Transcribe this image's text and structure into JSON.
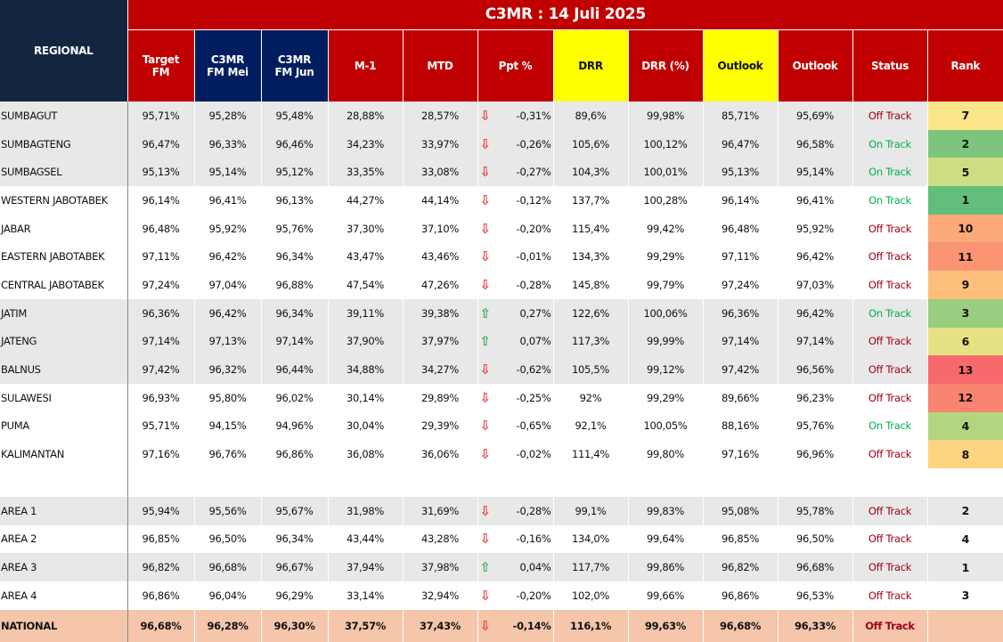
{
  "title": "C3MR : 14 Juli 2025",
  "headers": {
    "regional": "REGIONAL",
    "target": [
      "Target",
      "FM"
    ],
    "mei": [
      "C3MR",
      "FM Mei"
    ],
    "jun": [
      "C3MR",
      "FM Jun"
    ],
    "m1": "M-1",
    "mtd": "MTD",
    "ppt": "Ppt %",
    "drr": "DRR",
    "drr_pct": "DRR (%)",
    "outlook1": "Outlook",
    "outlook2": "Outlook",
    "status": "Status",
    "rank": "Rank"
  },
  "colors": {
    "header_red": "#c00000",
    "header_navy": "#001e5f",
    "regional_bg": "#12263f",
    "highlight_yellow": "#ffff00",
    "on_track": "#00b050",
    "off_track": "#a00018",
    "national_bg": "#f5c6aa"
  },
  "regions": [
    {
      "name": "SUMBAGUT",
      "target": "95,71%",
      "mei": "95,28%",
      "jun": "95,48%",
      "m1": "28,88%",
      "mtd": "28,57%",
      "trend": "down",
      "ppt": "-0,31%",
      "drr": "89,6%",
      "drr_pct": "99,98%",
      "outlook1": "85,71%",
      "outlook2": "95,69%",
      "status": "Off Track",
      "rank": "7",
      "rank_color": "#fde58a",
      "bg": "g"
    },
    {
      "name": "SUMBAGTENG",
      "target": "96,47%",
      "mei": "96,33%",
      "jun": "96,46%",
      "m1": "34,23%",
      "mtd": "33,97%",
      "trend": "down",
      "ppt": "-0,26%",
      "drr": "105,6%",
      "drr_pct": "100,12%",
      "outlook1": "96,47%",
      "outlook2": "96,58%",
      "status": "On Track",
      "rank": "2",
      "rank_color": "#7dc57c",
      "bg": "g"
    },
    {
      "name": "SUMBAGSEL",
      "target": "95,13%",
      "mei": "95,14%",
      "jun": "95,12%",
      "m1": "33,35%",
      "mtd": "33,08%",
      "trend": "down",
      "ppt": "-0,27%",
      "drr": "104,3%",
      "drr_pct": "100,01%",
      "outlook1": "95,13%",
      "outlook2": "95,14%",
      "status": "On Track",
      "rank": "5",
      "rank_color": "#cdde82",
      "bg": "g"
    },
    {
      "name": "WESTERN JABOTABEK",
      "target": "96,14%",
      "mei": "96,41%",
      "jun": "96,13%",
      "m1": "44,27%",
      "mtd": "44,14%",
      "trend": "down",
      "ppt": "-0,12%",
      "drr": "137,7%",
      "drr_pct": "100,28%",
      "outlook1": "96,14%",
      "outlook2": "96,41%",
      "status": "On Track",
      "rank": "1",
      "rank_color": "#63be7b",
      "bg": "w"
    },
    {
      "name": "JABAR",
      "target": "96,48%",
      "mei": "95,92%",
      "jun": "95,76%",
      "m1": "37,30%",
      "mtd": "37,10%",
      "trend": "down",
      "ppt": "-0,20%",
      "drr": "115,4%",
      "drr_pct": "99,42%",
      "outlook1": "96,48%",
      "outlook2": "95,92%",
      "status": "Off Track",
      "rank": "10",
      "rank_color": "#fca877",
      "bg": "w"
    },
    {
      "name": "EASTERN JABOTABEK",
      "target": "97,11%",
      "mei": "96,42%",
      "jun": "96,34%",
      "m1": "43,47%",
      "mtd": "43,46%",
      "trend": "down",
      "ppt": "-0,01%",
      "drr": "134,3%",
      "drr_pct": "99,29%",
      "outlook1": "97,11%",
      "outlook2": "96,42%",
      "status": "Off Track",
      "rank": "11",
      "rank_color": "#fa9473",
      "bg": "w"
    },
    {
      "name": "CENTRAL JABOTABEK",
      "target": "97,24%",
      "mei": "97,04%",
      "jun": "96,88%",
      "m1": "47,54%",
      "mtd": "47,26%",
      "trend": "down",
      "ppt": "-0,28%",
      "drr": "145,8%",
      "drr_pct": "99,79%",
      "outlook1": "97,24%",
      "outlook2": "97,03%",
      "status": "Off Track",
      "rank": "9",
      "rank_color": "#fdbf7b",
      "bg": "w"
    },
    {
      "name": "JATIM",
      "target": "96,36%",
      "mei": "96,42%",
      "jun": "96,34%",
      "m1": "39,11%",
      "mtd": "39,38%",
      "trend": "up",
      "ppt": "0,27%",
      "drr": "122,6%",
      "drr_pct": "100,06%",
      "outlook1": "96,36%",
      "outlook2": "96,42%",
      "status": "On Track",
      "rank": "3",
      "rank_color": "#98ce7f",
      "bg": "g"
    },
    {
      "name": "JATENG",
      "target": "97,14%",
      "mei": "97,13%",
      "jun": "97,14%",
      "m1": "37,90%",
      "mtd": "37,97%",
      "trend": "up",
      "ppt": "0,07%",
      "drr": "117,3%",
      "drr_pct": "99,99%",
      "outlook1": "97,14%",
      "outlook2": "97,14%",
      "status": "Off Track",
      "rank": "6",
      "rank_color": "#e5e283",
      "bg": "g"
    },
    {
      "name": "BALNUS",
      "target": "97,42%",
      "mei": "96,32%",
      "jun": "96,44%",
      "m1": "34,88%",
      "mtd": "34,27%",
      "trend": "down",
      "ppt": "-0,62%",
      "drr": "105,5%",
      "drr_pct": "99,12%",
      "outlook1": "97,42%",
      "outlook2": "96,56%",
      "status": "Off Track",
      "rank": "13",
      "rank_color": "#f8696b",
      "bg": "g"
    },
    {
      "name": "SULAWESI",
      "target": "96,93%",
      "mei": "95,80%",
      "jun": "96,02%",
      "m1": "30,14%",
      "mtd": "29,89%",
      "trend": "down",
      "ppt": "-0,25%",
      "drr": "92%",
      "drr_pct": "99,29%",
      "outlook1": "89,66%",
      "outlook2": "96,23%",
      "status": "Off Track",
      "rank": "12",
      "rank_color": "#f98470",
      "bg": "w"
    },
    {
      "name": "PUMA",
      "target": "95,71%",
      "mei": "94,15%",
      "jun": "94,96%",
      "m1": "30,04%",
      "mtd": "29,39%",
      "trend": "down",
      "ppt": "-0,65%",
      "drr": "92,1%",
      "drr_pct": "100,05%",
      "outlook1": "88,16%",
      "outlook2": "95,76%",
      "status": "On Track",
      "rank": "4",
      "rank_color": "#b1d67f",
      "bg": "w"
    },
    {
      "name": "KALIMANTAN",
      "target": "97,16%",
      "mei": "96,76%",
      "jun": "96,86%",
      "m1": "36,08%",
      "mtd": "36,06%",
      "trend": "down",
      "ppt": "-0,02%",
      "drr": "111,4%",
      "drr_pct": "99,80%",
      "outlook1": "97,16%",
      "outlook2": "96,96%",
      "status": "Off Track",
      "rank": "8",
      "rank_color": "#fed480",
      "bg": "w"
    }
  ],
  "areas": [
    {
      "name": "AREA 1",
      "target": "95,94%",
      "mei": "95,56%",
      "jun": "95,67%",
      "m1": "31,98%",
      "mtd": "31,69%",
      "trend": "down",
      "ppt": "-0,28%",
      "drr": "99,1%",
      "drr_pct": "99,83%",
      "outlook1": "95,08%",
      "outlook2": "95,78%",
      "status": "Off Track",
      "rank": "2",
      "bg": "g"
    },
    {
      "name": "AREA 2",
      "target": "96,85%",
      "mei": "96,50%",
      "jun": "96,34%",
      "m1": "43,44%",
      "mtd": "43,28%",
      "trend": "down",
      "ppt": "-0,16%",
      "drr": "134,0%",
      "drr_pct": "99,64%",
      "outlook1": "96,85%",
      "outlook2": "96,50%",
      "status": "Off Track",
      "rank": "4",
      "bg": "w"
    },
    {
      "name": "AREA 3",
      "target": "96,82%",
      "mei": "96,68%",
      "jun": "96,67%",
      "m1": "37,94%",
      "mtd": "37,98%",
      "trend": "up",
      "ppt": "0,04%",
      "drr": "117,7%",
      "drr_pct": "99,86%",
      "outlook1": "96,82%",
      "outlook2": "96,68%",
      "status": "Off Track",
      "rank": "1",
      "bg": "g"
    },
    {
      "name": "AREA 4",
      "target": "96,86%",
      "mei": "96,04%",
      "jun": "96,29%",
      "m1": "33,14%",
      "mtd": "32,94%",
      "trend": "down",
      "ppt": "-0,20%",
      "drr": "102,0%",
      "drr_pct": "99,66%",
      "outlook1": "96,86%",
      "outlook2": "96,53%",
      "status": "Off Track",
      "rank": "3",
      "bg": "w"
    }
  ],
  "national": {
    "name": "NATIONAL",
    "target": "96,68%",
    "mei": "96,28%",
    "jun": "96,30%",
    "m1": "37,57%",
    "mtd": "37,43%",
    "trend": "down",
    "ppt": "-0,14%",
    "drr": "116,1%",
    "drr_pct": "99,63%",
    "outlook1": "96,68%",
    "outlook2": "96,33%",
    "status": "Off Track",
    "rank": ""
  }
}
